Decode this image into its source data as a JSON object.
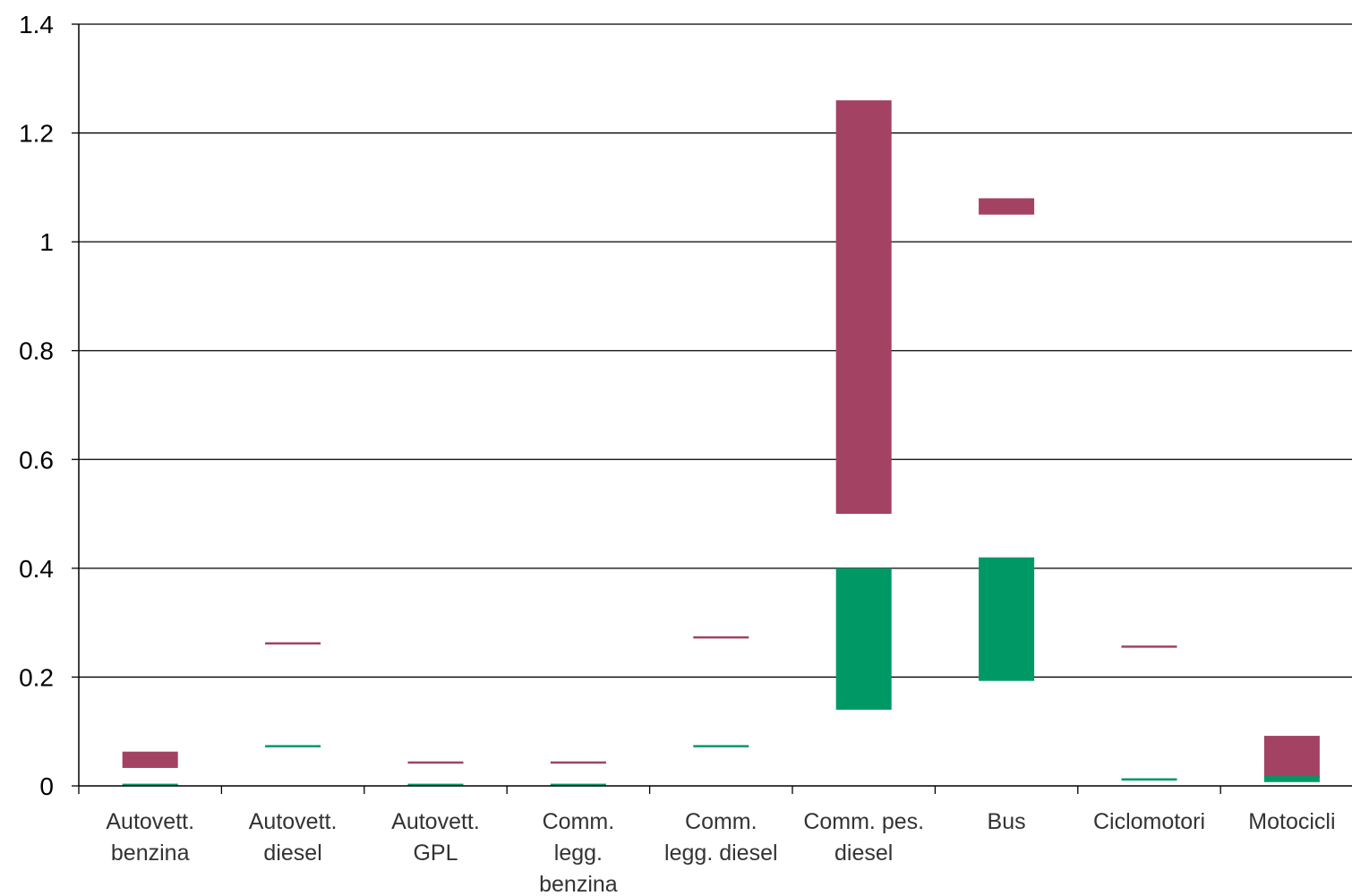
{
  "chart_data": {
    "type": "bar",
    "subtype": "floating-range",
    "title": "",
    "xlabel": "",
    "ylabel": "",
    "ylim": [
      0,
      1.4
    ],
    "yticks": [
      0,
      0.2,
      0.4,
      0.6,
      0.8,
      1,
      1.2,
      1.4
    ],
    "ytick_labels": [
      "0",
      "0.2",
      "0.4",
      "0.6",
      "0.8",
      "1",
      "1.2",
      "1.4"
    ],
    "grid": "horizontal",
    "legend": "none",
    "categories": [
      [
        "Autovett.",
        "benzina"
      ],
      [
        "Autovett.",
        "diesel"
      ],
      [
        "Autovett.",
        "GPL"
      ],
      [
        "Comm.",
        "legg.",
        "benzina"
      ],
      [
        "Comm.",
        "legg. diesel"
      ],
      [
        "Comm. pes.",
        "diesel"
      ],
      [
        "Bus"
      ],
      [
        "Ciclomotori"
      ],
      [
        "Motocicli"
      ]
    ],
    "series": [
      {
        "color": "#A34262",
        "ranges": [
          [
            0.033,
            0.063
          ],
          [
            0.26,
            0.264
          ],
          [
            0.041,
            0.045
          ],
          [
            0.041,
            0.045
          ],
          [
            0.271,
            0.275
          ],
          [
            0.5,
            1.26
          ],
          [
            1.05,
            1.08
          ],
          [
            0.254,
            0.258
          ],
          [
            0.015,
            0.092
          ]
        ]
      },
      {
        "color": "#009966",
        "ranges": [
          [
            0.001,
            0.004
          ],
          [
            0.071,
            0.075
          ],
          [
            0.001,
            0.004
          ],
          [
            0.001,
            0.004
          ],
          [
            0.071,
            0.075
          ],
          [
            0.14,
            0.4
          ],
          [
            0.193,
            0.42
          ],
          [
            0.01,
            0.014
          ],
          [
            0.007,
            0.018
          ]
        ]
      }
    ]
  }
}
